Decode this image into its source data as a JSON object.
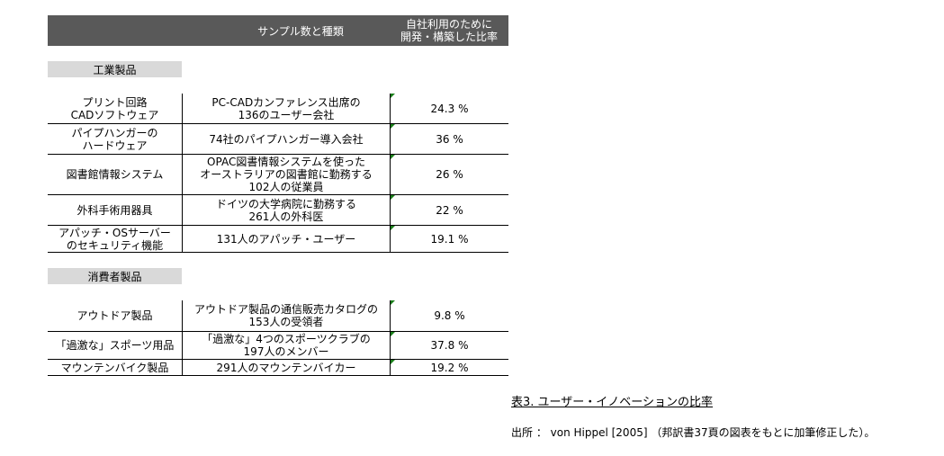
{
  "header": {
    "col1": "サンプル数と種類",
    "col2_line1": "自社利用のために",
    "col2_line2": "開発・構築した比率"
  },
  "industrial": {
    "label": "工業製品",
    "rows": [
      {
        "product": [
          "プリント回路",
          "CADソフトウェア"
        ],
        "sample": [
          "PC-CADカンファレンス出席の",
          "136のユーザー会社"
        ],
        "ratio": "24.3 %"
      },
      {
        "product": [
          "パイプハンガーの",
          "ハードウェア"
        ],
        "sample": [
          "74社のパイプハンガー導入会社"
        ],
        "ratio": "36 %"
      },
      {
        "product": [
          "図書館情報システム"
        ],
        "sample": [
          "OPAC図書情報システムを使った",
          "オーストラリアの図書館に勤務する",
          "102人の従業員"
        ],
        "ratio": "26 %"
      },
      {
        "product": [
          "外科手術用器具"
        ],
        "sample": [
          "ドイツの大学病院に勤務する",
          "261人の外科医"
        ],
        "ratio": "22 %"
      },
      {
        "product": [
          "アパッチ・OSサーバー",
          "のセキュリティ機能"
        ],
        "sample": [
          "131人のアパッチ・ユーザー"
        ],
        "ratio": "19.1 %"
      }
    ]
  },
  "consumer": {
    "label": "消費者製品",
    "rows": [
      {
        "product": [
          "アウトドア製品"
        ],
        "sample": [
          "アウトドア製品の通信販売カタログの",
          "153人の受領者"
        ],
        "ratio": "9.8 %"
      },
      {
        "product": [
          "「過激な」スポーツ用品"
        ],
        "sample": [
          "「過激な」4つのスポーツクラブの",
          "197人のメンバー"
        ],
        "ratio": "37.8 %"
      },
      {
        "product": [
          "マウンテンバイク製品"
        ],
        "sample": [
          "291人のマウンテンバイカー"
        ],
        "ratio": "19.2 %"
      }
    ]
  },
  "caption": "表3. ユーザー・イノベーションの比率",
  "source": "出所 ： von Hippel [2005] （邦訳書37頁の図表をもとに加筆修正した）。"
}
